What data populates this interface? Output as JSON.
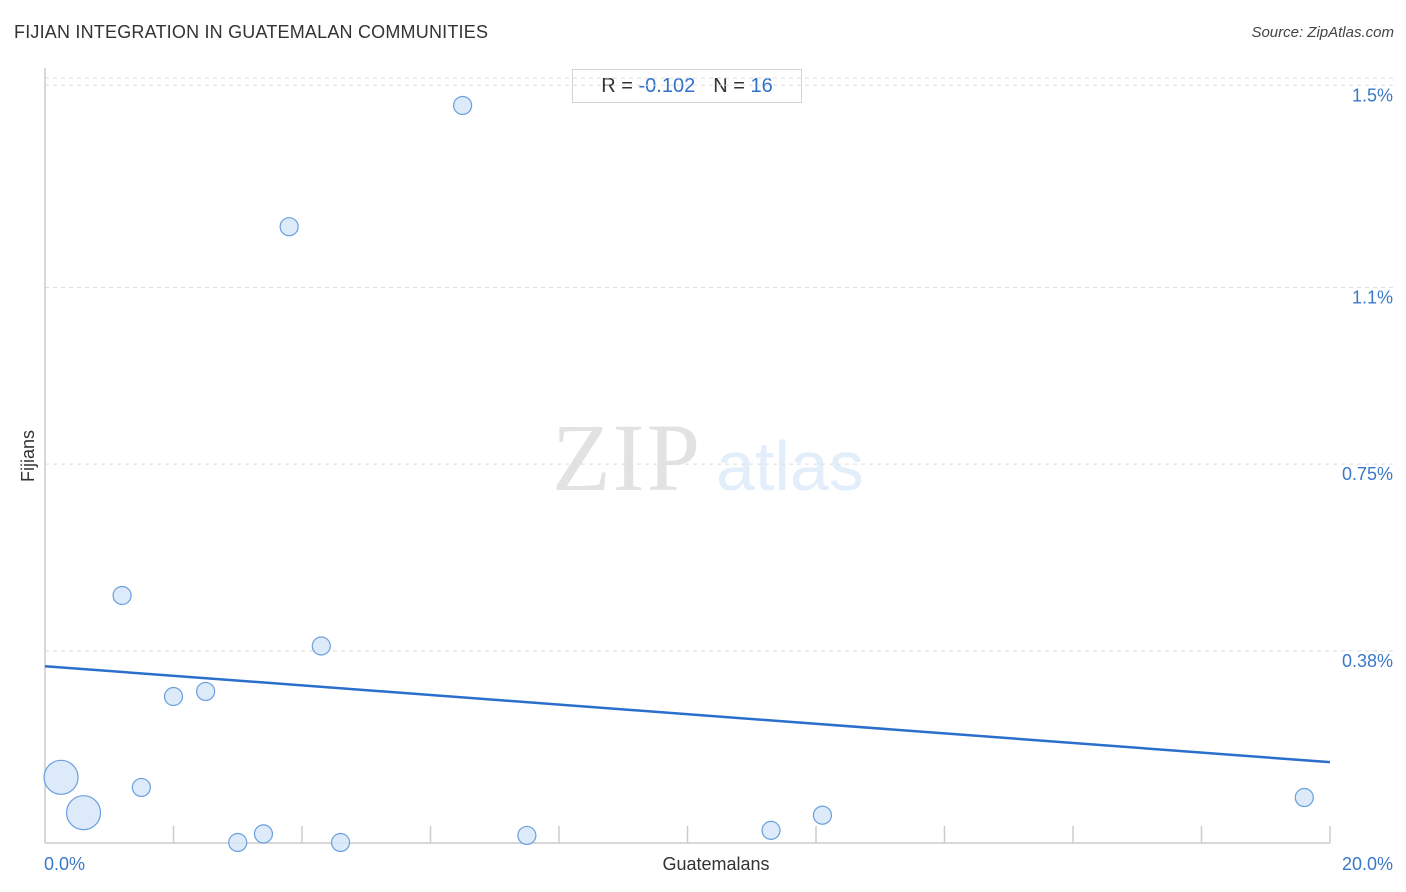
{
  "header": {
    "title": "FIJIAN INTEGRATION IN GUATEMALAN COMMUNITIES",
    "source": "Source: ZipAtlas.com"
  },
  "stats": {
    "r_label": "R =",
    "r_value": "-0.102",
    "n_label": "N =",
    "n_value": "16"
  },
  "watermark": {
    "zip": "ZIP",
    "atlas": "atlas"
  },
  "colors": {
    "point_fill": "#d6e6f9",
    "point_stroke": "#6a9fdc",
    "trend_line": "#2b6fcc",
    "tick_text": "#3a78c8",
    "grid": "#dddddd"
  },
  "chart_data": {
    "type": "scatter",
    "title": "FIJIAN INTEGRATION IN GUATEMALAN COMMUNITIES",
    "xlabel": "Guatemalans",
    "ylabel": "Fijians",
    "x_unit": "%",
    "y_unit": "%",
    "xlim": [
      0,
      20
    ],
    "ylim": [
      0,
      1.55
    ],
    "x_tick_labels": [
      "0.0%",
      "20.0%"
    ],
    "y_ticks": [
      {
        "value": 0.38,
        "label": "0.38%"
      },
      {
        "value": 0.75,
        "label": "0.75%"
      },
      {
        "value": 1.1,
        "label": "1.1%"
      },
      {
        "value": 1.5,
        "label": "1.5%"
      }
    ],
    "grid": "horizontal dashed",
    "series": [
      {
        "points": [
          {
            "x": 0.25,
            "y": 0.13,
            "size": "large"
          },
          {
            "x": 0.6,
            "y": 0.06,
            "size": "large"
          },
          {
            "x": 1.2,
            "y": 0.49,
            "size": "small"
          },
          {
            "x": 1.5,
            "y": 0.11,
            "size": "small"
          },
          {
            "x": 2.0,
            "y": 0.29,
            "size": "small"
          },
          {
            "x": 2.5,
            "y": 0.3,
            "size": "small"
          },
          {
            "x": 3.0,
            "y": 0.001,
            "size": "small"
          },
          {
            "x": 3.4,
            "y": 0.018,
            "size": "small"
          },
          {
            "x": 3.8,
            "y": 1.22,
            "size": "small"
          },
          {
            "x": 4.3,
            "y": 0.39,
            "size": "small"
          },
          {
            "x": 4.6,
            "y": 0.001,
            "size": "small"
          },
          {
            "x": 6.5,
            "y": 1.46,
            "size": "small"
          },
          {
            "x": 7.5,
            "y": 0.015,
            "size": "small"
          },
          {
            "x": 11.3,
            "y": 0.025,
            "size": "small"
          },
          {
            "x": 12.1,
            "y": 0.055,
            "size": "small"
          },
          {
            "x": 19.6,
            "y": 0.09,
            "size": "small"
          }
        ]
      }
    ],
    "trend_line": {
      "x": [
        0,
        20
      ],
      "y": [
        0.35,
        0.16
      ]
    }
  }
}
